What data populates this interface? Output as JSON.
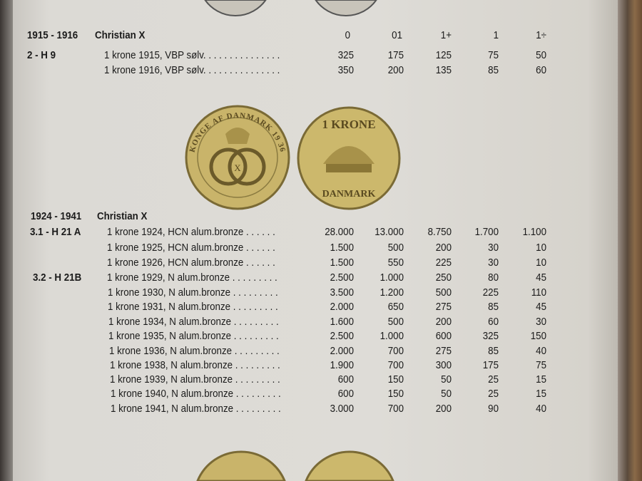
{
  "sections": [
    {
      "title_years": "1915 - 1916",
      "title_king": "Christian X",
      "columns": [
        "0",
        "01",
        "1+",
        "1",
        "1÷"
      ],
      "groups": [
        {
          "code": "2 - H 9",
          "rows": [
            {
              "desc": "1 krone 1915, VBP sølv. . . . . . . . . . . . . . .",
              "values": [
                "325",
                "175",
                "125",
                "75",
                "50"
              ]
            },
            {
              "desc": "1 krone 1916, VBP sølv. . . . . . . . . . . . . . .",
              "values": [
                "350",
                "200",
                "135",
                "85",
                "60"
              ]
            }
          ]
        }
      ]
    },
    {
      "title_years": "1924 - 1941",
      "title_king": "Christian X",
      "groups": [
        {
          "code": "3.1 - H 21 A",
          "rows": [
            {
              "desc": "1 krone 1924, HCN alum.bronze . . . . . .",
              "values": [
                "28.000",
                "13.000",
                "8.750",
                "1.700",
                "1.100"
              ]
            },
            {
              "desc": "1 krone 1925, HCN alum.bronze . . . . . .",
              "values": [
                "1.500",
                "500",
                "200",
                "30",
                "10"
              ]
            },
            {
              "desc": "1 krone 1926, HCN alum.bronze . . . . . .",
              "values": [
                "1.500",
                "550",
                "225",
                "30",
                "10"
              ]
            }
          ]
        },
        {
          "code": "3.2 - H 21B",
          "rows": [
            {
              "desc": "1 krone 1929, N alum.bronze . . . . . . . . .",
              "values": [
                "2.500",
                "1.000",
                "250",
                "80",
                "45"
              ]
            },
            {
              "desc": "1 krone 1930, N alum.bronze . . . . . . . . .",
              "values": [
                "3.500",
                "1.200",
                "500",
                "225",
                "110"
              ]
            },
            {
              "desc": "1 krone 1931, N alum.bronze . . . . . . . . .",
              "values": [
                "2.000",
                "650",
                "275",
                "85",
                "45"
              ]
            },
            {
              "desc": "1 krone 1934, N alum.bronze . . . . . . . . .",
              "values": [
                "1.600",
                "500",
                "200",
                "60",
                "30"
              ]
            },
            {
              "desc": "1 krone 1935, N alum.bronze . . . . . . . . .",
              "values": [
                "2.500",
                "1.000",
                "600",
                "325",
                "150"
              ]
            },
            {
              "desc": "1 krone 1936, N alum.bronze . . . . . . . . .",
              "values": [
                "2.000",
                "700",
                "275",
                "85",
                "40"
              ]
            },
            {
              "desc": "1 krone 1938, N alum.bronze . . . . . . . . .",
              "values": [
                "1.900",
                "700",
                "300",
                "175",
                "75"
              ]
            },
            {
              "desc": "1 krone 1939, N alum.bronze . . . . . . . . .",
              "values": [
                "600",
                "150",
                "50",
                "25",
                "15"
              ]
            },
            {
              "desc": "1 krone 1940, N alum.bronze . . . . . . . . .",
              "values": [
                "600",
                "150",
                "50",
                "25",
                "15"
              ]
            },
            {
              "desc": "1 krone 1941, N alum.bronze . . . . . . . . .",
              "values": [
                "3.000",
                "700",
                "200",
                "90",
                "40"
              ]
            }
          ]
        }
      ]
    }
  ],
  "coin_lettering": {
    "obverse": "KONGE AF DANMARK 19 36",
    "reverse": "1 KRONE DANMARK"
  },
  "colors": {
    "coin": "#c9b46a",
    "page": "#dcdad5"
  }
}
